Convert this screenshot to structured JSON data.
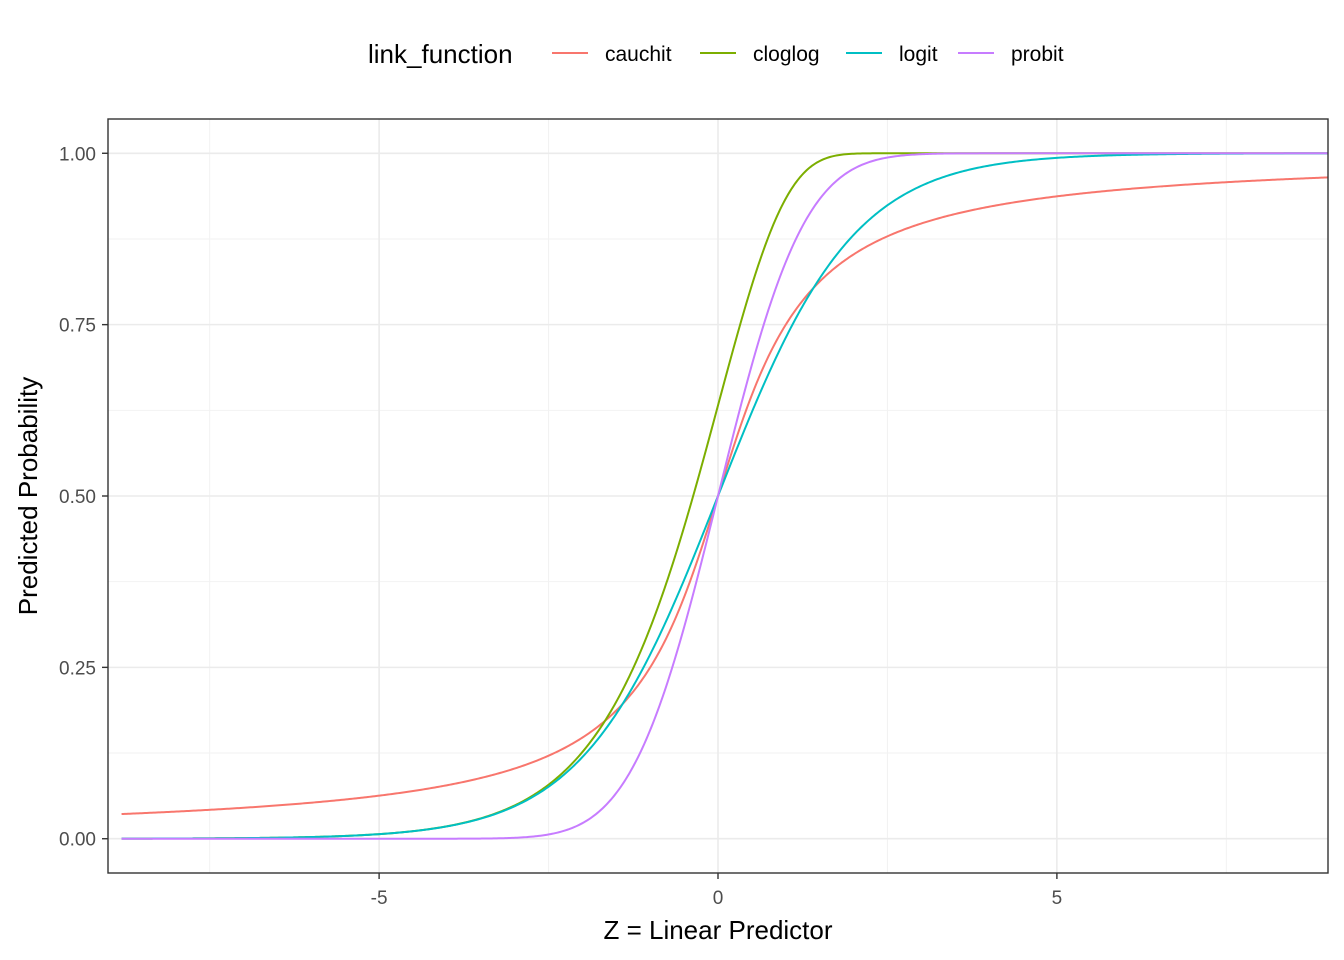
{
  "chart_data": {
    "type": "line",
    "xlabel": "Z = Linear Predictor",
    "ylabel": "Predicted Probability",
    "xlim": [
      -9.0,
      9.0
    ],
    "ylim": [
      -0.05,
      1.05
    ],
    "x_ticks": [
      -5,
      0,
      5
    ],
    "x_tick_labels": [
      "-5",
      "0",
      "5"
    ],
    "y_ticks": [
      0.0,
      0.25,
      0.5,
      0.75,
      1.0
    ],
    "y_tick_labels": [
      "0.00",
      "0.25",
      "0.50",
      "0.75",
      "1.00"
    ],
    "grid": true,
    "legend": {
      "title": "link_function",
      "position": "top"
    },
    "x_range": [
      -8.8,
      9.0
    ],
    "series": [
      {
        "name": "cauchit",
        "color": "#F8766D",
        "formula": "cauchit"
      },
      {
        "name": "cloglog",
        "color": "#7CAE00",
        "formula": "cloglog"
      },
      {
        "name": "logit",
        "color": "#00BFC4",
        "formula": "logit"
      },
      {
        "name": "probit",
        "color": "#C77CFF",
        "formula": "probit"
      }
    ]
  }
}
